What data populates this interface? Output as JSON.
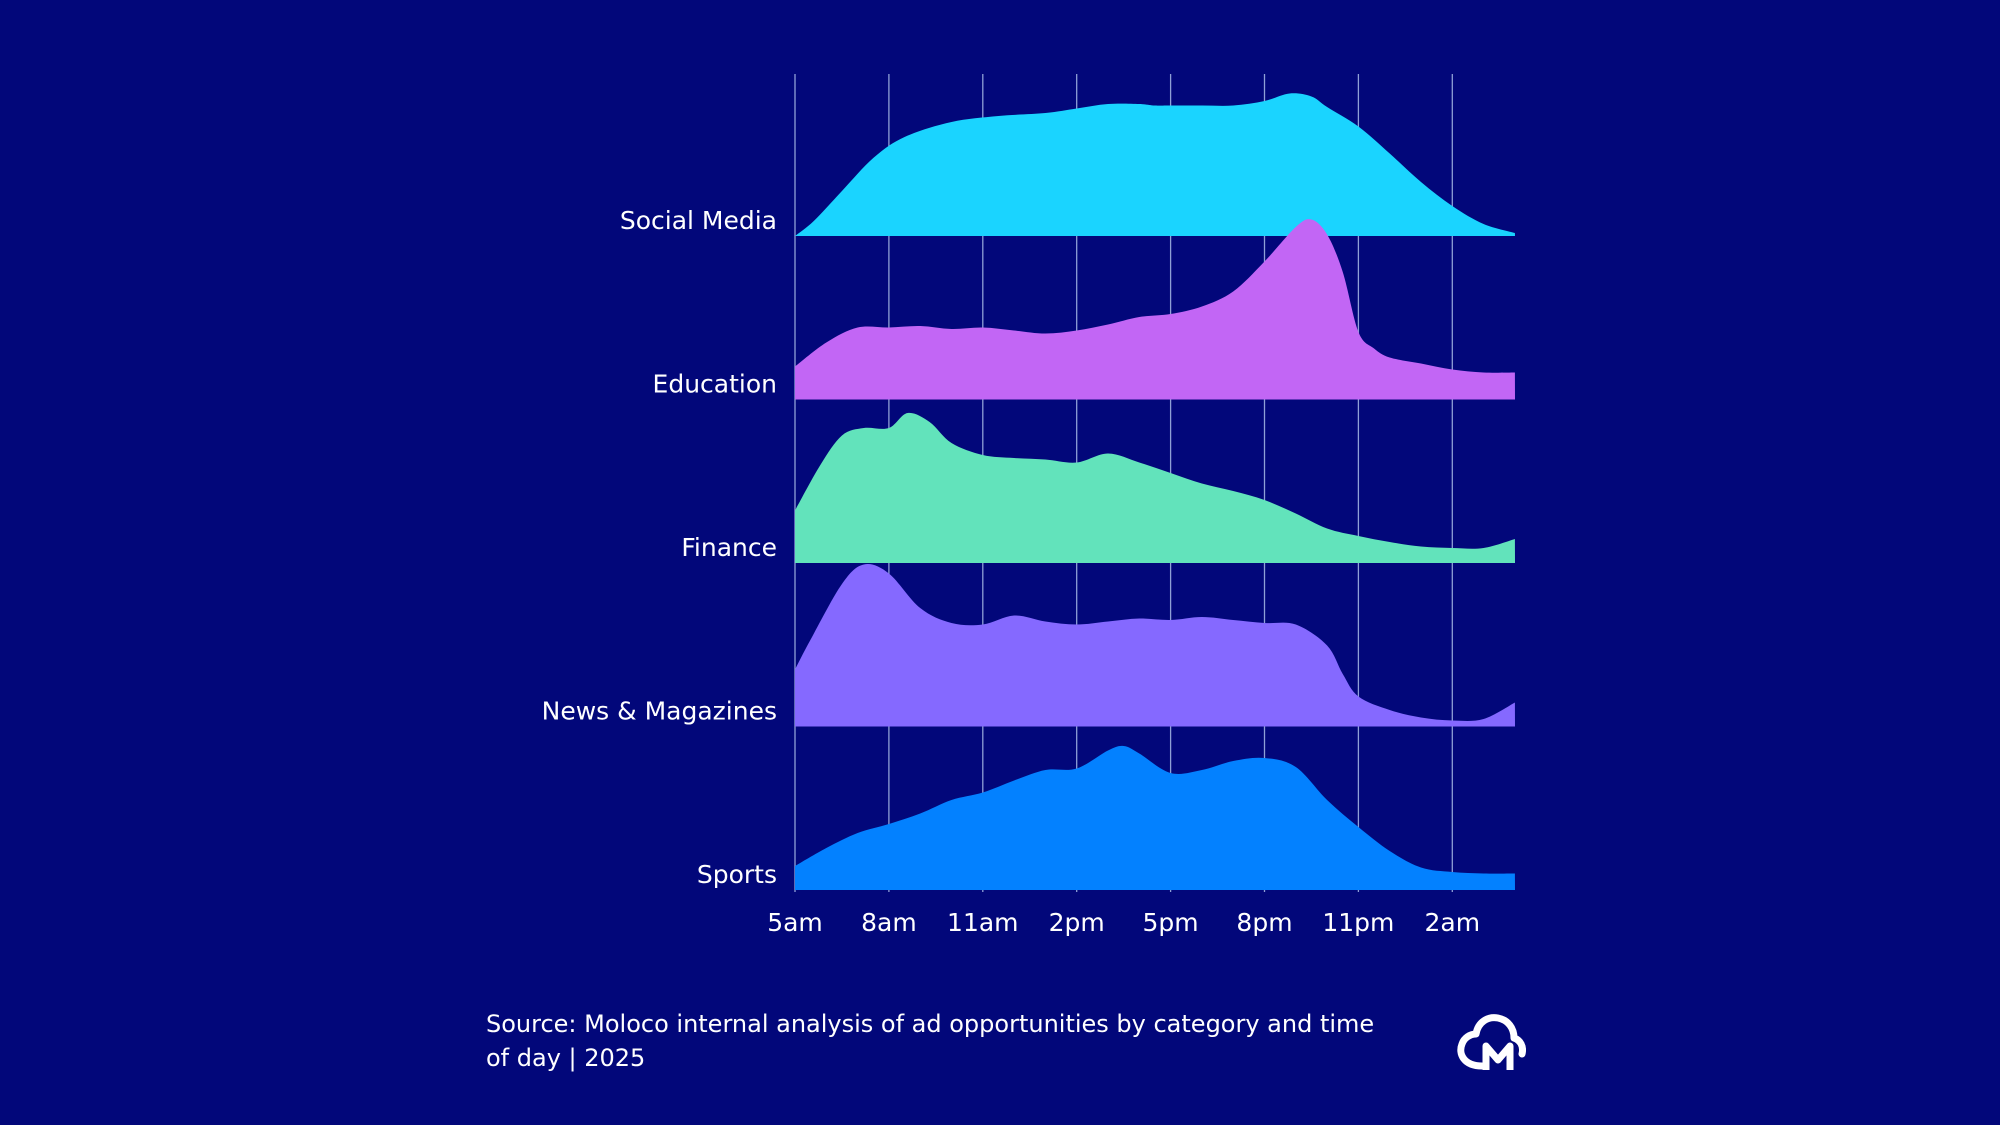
{
  "chart_data": {
    "type": "area",
    "subtype": "ridgeline",
    "x_ticks": [
      "5am",
      "8am",
      "11am",
      "2pm",
      "5pm",
      "8pm",
      "11pm",
      "2am"
    ],
    "x_unit": "hours since 5am",
    "xlim": [
      0,
      23
    ],
    "grid": "vertical",
    "legend": "none",
    "series": [
      {
        "name": "Social Media",
        "color": "#1ad4ff",
        "x": [
          0,
          0.6,
          1.5,
          2.5,
          3.5,
          5,
          6.5,
          8,
          9,
          10,
          11,
          11.5,
          12,
          13,
          14,
          15,
          15.8,
          16.5,
          17,
          18,
          19,
          20,
          21,
          22,
          23
        ],
        "y": [
          0,
          0.1,
          0.3,
          0.52,
          0.66,
          0.76,
          0.8,
          0.82,
          0.85,
          0.88,
          0.88,
          0.87,
          0.87,
          0.87,
          0.87,
          0.9,
          0.95,
          0.93,
          0.86,
          0.73,
          0.55,
          0.36,
          0.2,
          0.08,
          0.02
        ]
      },
      {
        "name": "Education",
        "color": "#c266f5",
        "x": [
          0,
          1,
          2,
          3,
          4,
          5,
          6,
          7,
          8,
          9,
          10,
          11,
          12,
          13,
          14,
          15,
          16,
          16.5,
          17,
          17.5,
          18,
          18.5,
          19,
          20,
          21,
          22,
          23
        ],
        "y": [
          0.22,
          0.38,
          0.48,
          0.48,
          0.49,
          0.47,
          0.48,
          0.46,
          0.44,
          0.46,
          0.5,
          0.55,
          0.57,
          0.62,
          0.72,
          0.92,
          1.15,
          1.2,
          1.1,
          0.85,
          0.45,
          0.34,
          0.28,
          0.24,
          0.2,
          0.18,
          0.18
        ]
      },
      {
        "name": "Finance",
        "color": "#62e3bb",
        "x": [
          0,
          0.8,
          1.5,
          2.2,
          3,
          3.6,
          4.3,
          5,
          6,
          7,
          8,
          9,
          10,
          11,
          12,
          13,
          14,
          15,
          16,
          17,
          18,
          19,
          20,
          21,
          22,
          23
        ],
        "y": [
          0.35,
          0.65,
          0.85,
          0.9,
          0.9,
          1.0,
          0.94,
          0.8,
          0.72,
          0.7,
          0.69,
          0.67,
          0.73,
          0.67,
          0.6,
          0.53,
          0.48,
          0.42,
          0.33,
          0.23,
          0.18,
          0.14,
          0.11,
          0.1,
          0.1,
          0.16
        ]
      },
      {
        "name": "News & Magazines",
        "color": "#8569ff",
        "x": [
          0,
          0.5,
          1.5,
          2.2,
          3,
          4,
          5,
          6,
          7,
          8,
          9,
          10,
          11,
          12,
          13,
          14,
          15,
          16,
          17,
          17.5,
          18,
          19,
          20,
          21,
          22,
          23
        ],
        "y": [
          0.38,
          0.58,
          0.95,
          1.08,
          1.02,
          0.79,
          0.69,
          0.68,
          0.74,
          0.7,
          0.68,
          0.7,
          0.72,
          0.71,
          0.73,
          0.71,
          0.69,
          0.68,
          0.54,
          0.35,
          0.2,
          0.11,
          0.06,
          0.04,
          0.05,
          0.16
        ]
      },
      {
        "name": "Sports",
        "color": "#0381ff",
        "x": [
          0,
          1,
          2,
          3,
          4,
          5,
          6,
          7,
          8,
          9,
          10,
          10.5,
          11,
          12,
          13,
          14,
          15,
          16,
          17,
          18,
          19,
          20,
          21,
          22,
          23
        ],
        "y": [
          0.16,
          0.28,
          0.38,
          0.44,
          0.51,
          0.6,
          0.65,
          0.73,
          0.8,
          0.81,
          0.93,
          0.96,
          0.91,
          0.78,
          0.8,
          0.86,
          0.88,
          0.82,
          0.6,
          0.42,
          0.26,
          0.15,
          0.12,
          0.11,
          0.11
        ]
      }
    ]
  },
  "footer": {
    "source_line1": "Source: Moloco internal analysis of ad opportunities by category and time",
    "source_line2": "of day | 2025"
  },
  "colors": {
    "background": "#02077a",
    "gridline": "#8fa0d6",
    "text": "#ffffff"
  }
}
